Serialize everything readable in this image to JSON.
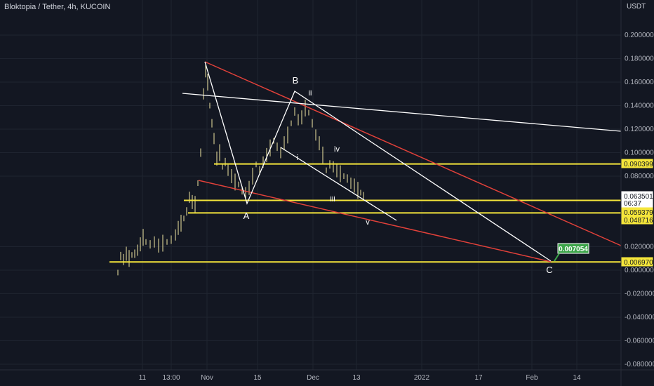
{
  "header": {
    "title": "Bloktopia / Tether, 4h, KUCOIN",
    "currency": "USDT"
  },
  "colors": {
    "background": "#131722",
    "grid": "#1f2430",
    "level": "#f5e63b",
    "red_line": "#e2413a",
    "white_line": "#ffffff",
    "green_badge": "#3da54a",
    "candle": "#f2e7a2"
  },
  "axis": {
    "y_ticks": [
      "0.200000",
      "0.180000",
      "0.160000",
      "0.140000",
      "0.120000",
      "0.100000",
      "0.080000",
      "0.020000",
      "0.000000",
      "-0.020000",
      "-0.040000",
      "-0.060000",
      "-0.080000"
    ],
    "x_ticks": [
      "11",
      "13:00",
      "Nov",
      "15",
      "Dec",
      "13",
      "2022",
      "17",
      "Feb",
      "14"
    ]
  },
  "price_labels": {
    "current": "0.063501",
    "countdown": "06:37",
    "levels": [
      "0.090399",
      "0.059379",
      "0.048716",
      "0.006970"
    ],
    "target_badge": "0.007054"
  },
  "wave_labels": {
    "A": "A",
    "B": "B",
    "C": "C",
    "i": "i",
    "ii": "ii",
    "iii": "iii",
    "iv": "iv",
    "v": "v"
  }
}
